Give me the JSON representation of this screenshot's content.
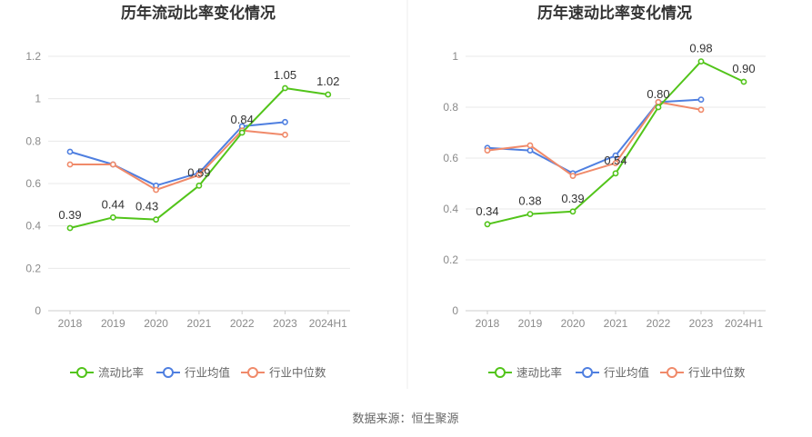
{
  "colors": {
    "primary": "#52c41a",
    "avg": "#4f7fe0",
    "median": "#f08a6a",
    "grid": "#e8e8e8",
    "divider": "#eeeeee"
  },
  "source": "数据来源：恒生聚源",
  "chart_data": [
    {
      "type": "line",
      "title": "历年流动比率变化情况",
      "categories": [
        "2018",
        "2019",
        "2020",
        "2021",
        "2022",
        "2023",
        "2024H1"
      ],
      "ylim": [
        0,
        1.2
      ],
      "yticks": [
        "0",
        "0.2",
        "0.4",
        "0.6",
        "0.8",
        "1",
        "1.2"
      ],
      "series": [
        {
          "name": "流动比率",
          "values": [
            0.39,
            0.44,
            0.43,
            0.59,
            0.84,
            1.05,
            1.02
          ],
          "labels": [
            "0.39",
            "0.44",
            "0.43",
            "0.59",
            "0.84",
            "1.05",
            "1.02"
          ]
        },
        {
          "name": "行业均值",
          "values": [
            0.75,
            0.69,
            0.59,
            0.65,
            0.87,
            0.89,
            null
          ]
        },
        {
          "name": "行业中位数",
          "values": [
            0.69,
            0.69,
            0.57,
            0.64,
            0.85,
            0.83,
            null
          ]
        }
      ]
    },
    {
      "type": "line",
      "title": "历年速动比率变化情况",
      "categories": [
        "2018",
        "2019",
        "2020",
        "2021",
        "2022",
        "2023",
        "2024H1"
      ],
      "ylim": [
        0,
        1
      ],
      "yticks": [
        "0",
        "0.2",
        "0.4",
        "0.6",
        "0.8",
        "1"
      ],
      "series": [
        {
          "name": "速动比率",
          "values": [
            0.34,
            0.38,
            0.39,
            0.54,
            0.8,
            0.98,
            0.9
          ],
          "labels": [
            "0.34",
            "0.38",
            "0.39",
            "0.54",
            "0.80",
            "0.98",
            "0.90"
          ]
        },
        {
          "name": "行业均值",
          "values": [
            0.64,
            0.63,
            0.54,
            0.61,
            0.82,
            0.83,
            null
          ]
        },
        {
          "name": "行业中位数",
          "values": [
            0.63,
            0.65,
            0.53,
            0.58,
            0.82,
            0.79,
            null
          ]
        }
      ]
    }
  ]
}
